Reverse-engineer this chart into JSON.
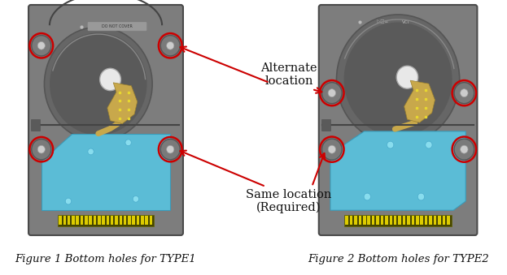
{
  "fig_width": 6.23,
  "fig_height": 3.39,
  "dpi": 100,
  "bg_color": "#ffffff",
  "drive_bg": "#7d7d7d",
  "drive_dark": "#636363",
  "drive_border": "#4a4a4a",
  "pcb_color": "#5bbcd6",
  "pcb_edge": "#3a9ab8",
  "ribbon_color": "#c8a84b",
  "circle_color": "#cc0000",
  "arrow_color": "#cc0000",
  "text_color": "#111111",
  "label1": "Figure 1 Bottom holes for TYPE1",
  "label2": "Figure 2 Bottom holes for TYPE2",
  "alt_label": "Alternate\nlocation",
  "same_label": "Same location\n(Required)",
  "label_fontsize": 9.5,
  "annot_fontsize": 10.5
}
